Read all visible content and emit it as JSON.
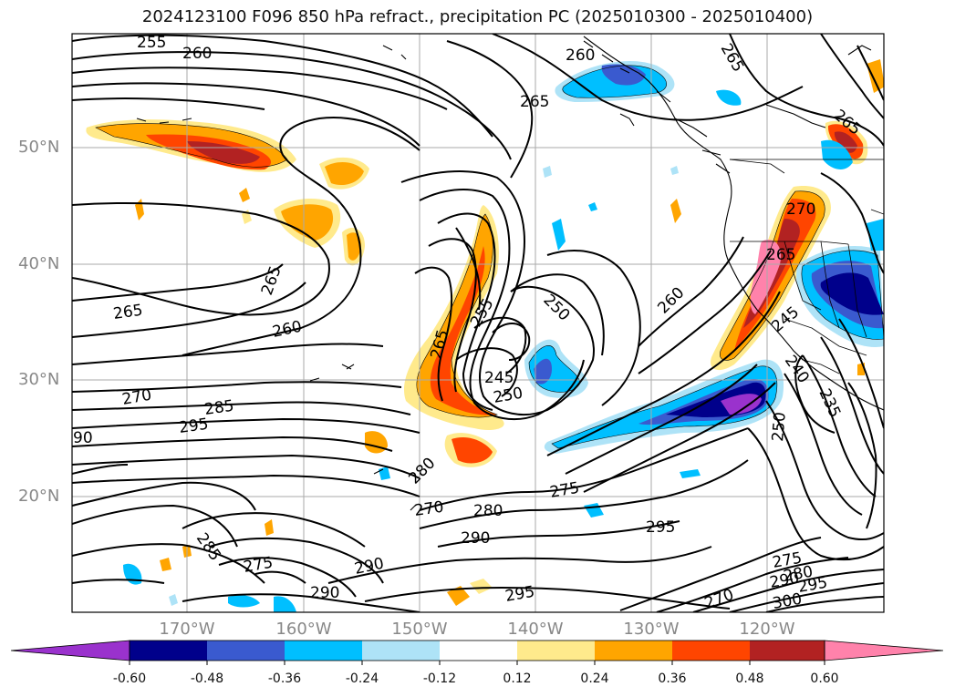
{
  "title": "2024123100 F096 850 hPa refract., precipitation PC (2025010300 - 2025010400)",
  "map": {
    "lat_labels": [
      "50°N",
      "40°N",
      "30°N",
      "20°N"
    ],
    "lon_labels": [
      "170°W",
      "160°W",
      "150°W",
      "140°W",
      "130°W",
      "120°W"
    ],
    "contour_labels": [
      "255",
      "260",
      "265",
      "265",
      "265",
      "260",
      "270",
      "285",
      "295",
      "90",
      "280",
      "270",
      "280",
      "290",
      "275",
      "295",
      "285",
      "275",
      "290",
      "290",
      "295",
      "265",
      "255",
      "245",
      "250",
      "265",
      "260",
      "265",
      "270",
      "265",
      "250",
      "245",
      "240",
      "235",
      "250",
      "260",
      "275",
      "280",
      "290",
      "295",
      "300",
      "270"
    ]
  },
  "colorbar": {
    "ticks": [
      "-0.60",
      "-0.48",
      "-0.36",
      "-0.24",
      "-0.12",
      "0.12",
      "0.24",
      "0.36",
      "0.48",
      "0.60"
    ],
    "colors": [
      "#9a32cd",
      "#00008b",
      "#3a5acf",
      "#00bfff",
      "#aee3f7",
      "#ffffff",
      "#ffea8c",
      "#ffa500",
      "#ff4500",
      "#b22222",
      "#ff82ab"
    ]
  }
}
